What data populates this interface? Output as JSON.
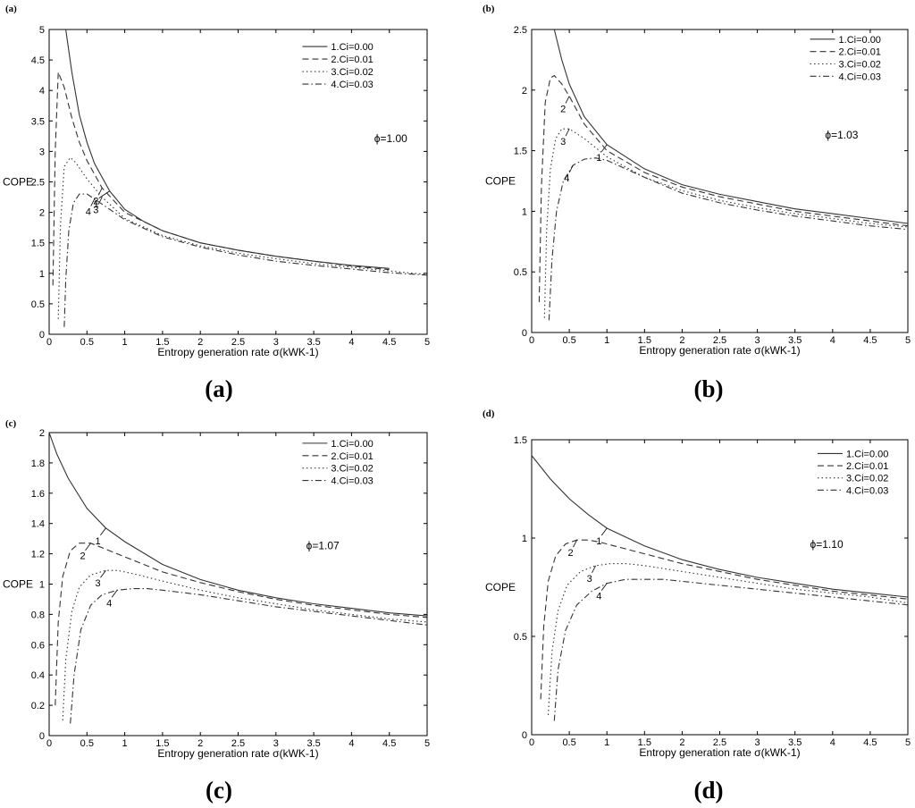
{
  "chart_data": [
    {
      "type": "line",
      "panel_tag": "(a)",
      "caption": "(a)",
      "xlabel": "Entropy generation rate σ(kWK-1)",
      "ylabel": "COPE",
      "annotation": "ϕ=1.00",
      "xlim": [
        0,
        5
      ],
      "ylim": [
        0,
        5
      ],
      "xticks": [
        "0",
        "0.5",
        "1",
        "1.5",
        "2",
        "2.5",
        "3",
        "3.5",
        "4",
        "4.5",
        "5"
      ],
      "yticks": [
        "0",
        "0.5",
        "1",
        "1.5",
        "2",
        "2.5",
        "3",
        "3.5",
        "4",
        "4.5",
        "5"
      ],
      "legend_position": "top-right",
      "series": [
        {
          "name": "1.Ci=0.00",
          "label": "1",
          "dash": "solid",
          "x": [
            0.22,
            0.3,
            0.4,
            0.5,
            0.6,
            0.8,
            1.0,
            1.25,
            1.5,
            2.0,
            2.5,
            3.0,
            3.5,
            4.0,
            4.5
          ],
          "y": [
            5.0,
            4.3,
            3.6,
            3.15,
            2.8,
            2.35,
            2.05,
            1.85,
            1.7,
            1.5,
            1.38,
            1.28,
            1.2,
            1.13,
            1.08
          ]
        },
        {
          "name": "2.Ci=0.01",
          "label": "2",
          "dash": "dashed",
          "x": [
            0.05,
            0.08,
            0.12,
            0.2,
            0.3,
            0.4,
            0.5,
            0.7,
            1.0,
            1.5,
            2.0,
            2.5,
            3.0,
            3.5,
            4.0,
            4.5
          ],
          "y": [
            0.8,
            3.0,
            4.3,
            4.05,
            3.55,
            3.15,
            2.85,
            2.4,
            2.0,
            1.7,
            1.5,
            1.38,
            1.28,
            1.2,
            1.12,
            1.06
          ]
        },
        {
          "name": "3.Ci=0.02",
          "label": "3",
          "dash": "dotted",
          "x": [
            0.12,
            0.15,
            0.2,
            0.28,
            0.35,
            0.5,
            0.7,
            1.0,
            1.5,
            2.0,
            2.5,
            3.0,
            3.5,
            4.0,
            4.5,
            5.0
          ],
          "y": [
            0.25,
            1.8,
            2.75,
            2.9,
            2.82,
            2.55,
            2.25,
            1.9,
            1.62,
            1.45,
            1.33,
            1.24,
            1.16,
            1.1,
            1.04,
            0.98
          ]
        },
        {
          "name": "4.Ci=0.03",
          "label": "4",
          "dash": "dashdot",
          "x": [
            0.2,
            0.22,
            0.26,
            0.32,
            0.4,
            0.5,
            0.6,
            0.8,
            1.0,
            1.5,
            2.0,
            2.5,
            3.0,
            3.5,
            4.0,
            4.5,
            5.0
          ],
          "y": [
            0.12,
            0.9,
            1.7,
            2.15,
            2.3,
            2.3,
            2.22,
            2.05,
            1.88,
            1.6,
            1.43,
            1.3,
            1.2,
            1.13,
            1.07,
            1.01,
            0.97
          ]
        }
      ]
    },
    {
      "type": "line",
      "panel_tag": "(b)",
      "caption": "(b)",
      "xlabel": "Entropy generation rate σ(kWK-1)",
      "ylabel": "COPE",
      "annotation": "ϕ=1.03",
      "xlim": [
        0,
        5
      ],
      "ylim": [
        0,
        2.5
      ],
      "xticks": [
        "0",
        "0.5",
        "1",
        "1.5",
        "2",
        "2.5",
        "3",
        "3.5",
        "4",
        "4.5",
        "5"
      ],
      "yticks": [
        "0",
        "0.5",
        "1",
        "1.5",
        "2",
        "2.5"
      ],
      "legend_position": "top-right",
      "series": [
        {
          "name": "1.Ci=0.00",
          "label": "1",
          "dash": "solid",
          "x": [
            0.3,
            0.4,
            0.5,
            0.7,
            1.0,
            1.5,
            2.0,
            2.5,
            3.0,
            3.5,
            4.0,
            4.5,
            5.0
          ],
          "y": [
            2.5,
            2.25,
            2.05,
            1.78,
            1.55,
            1.35,
            1.22,
            1.14,
            1.08,
            1.02,
            0.98,
            0.94,
            0.9
          ]
        },
        {
          "name": "2.Ci=0.01",
          "label": "2",
          "dash": "dashed",
          "x": [
            0.1,
            0.13,
            0.18,
            0.25,
            0.3,
            0.4,
            0.5,
            0.7,
            1.0,
            1.5,
            2.0,
            2.5,
            3.0,
            3.5,
            4.0,
            4.5,
            5.0
          ],
          "y": [
            0.25,
            1.2,
            1.9,
            2.1,
            2.12,
            2.05,
            1.95,
            1.72,
            1.5,
            1.32,
            1.2,
            1.12,
            1.06,
            1.0,
            0.96,
            0.92,
            0.88
          ]
        },
        {
          "name": "3.Ci=0.02",
          "label": "3",
          "dash": "dotted",
          "x": [
            0.17,
            0.2,
            0.25,
            0.32,
            0.4,
            0.5,
            0.7,
            1.0,
            1.5,
            2.0,
            2.5,
            3.0,
            3.5,
            4.0,
            4.5,
            5.0
          ],
          "y": [
            0.12,
            0.85,
            1.35,
            1.6,
            1.68,
            1.68,
            1.6,
            1.45,
            1.28,
            1.17,
            1.09,
            1.03,
            0.98,
            0.94,
            0.9,
            0.87
          ]
        },
        {
          "name": "4.Ci=0.03",
          "label": "4",
          "dash": "dashdot",
          "x": [
            0.23,
            0.27,
            0.33,
            0.42,
            0.55,
            0.7,
            0.85,
            1.0,
            1.5,
            2.0,
            2.5,
            3.0,
            3.5,
            4.0,
            4.5,
            5.0
          ],
          "y": [
            0.1,
            0.6,
            1.0,
            1.25,
            1.38,
            1.43,
            1.44,
            1.42,
            1.28,
            1.15,
            1.07,
            1.01,
            0.96,
            0.92,
            0.88,
            0.85
          ]
        }
      ]
    },
    {
      "type": "line",
      "panel_tag": "(c)",
      "caption": "(c)",
      "xlabel": "Entropy generation rate σ(kWK-1)",
      "ylabel": "COPE",
      "annotation": "ϕ=1.07",
      "xlim": [
        0,
        5
      ],
      "ylim": [
        0,
        2
      ],
      "xticks": [
        "0",
        "0.5",
        "1",
        "1.5",
        "2",
        "2.5",
        "3",
        "3.5",
        "4",
        "4.5",
        "5"
      ],
      "yticks": [
        "0",
        "0.2",
        "0.4",
        "0.6",
        "0.8",
        "1",
        "1.2",
        "1.4",
        "1.6",
        "1.8",
        "2"
      ],
      "legend_position": "top-right",
      "series": [
        {
          "name": "1.Ci=0.00",
          "label": "1",
          "dash": "solid",
          "x": [
            0.0,
            0.1,
            0.25,
            0.5,
            0.75,
            1.0,
            1.5,
            2.0,
            2.5,
            3.0,
            3.5,
            4.0,
            4.5,
            5.0
          ],
          "y": [
            2.0,
            1.86,
            1.7,
            1.5,
            1.37,
            1.28,
            1.13,
            1.03,
            0.96,
            0.91,
            0.87,
            0.84,
            0.81,
            0.79
          ]
        },
        {
          "name": "2.Ci=0.01",
          "label": "2",
          "dash": "dashed",
          "x": [
            0.08,
            0.12,
            0.18,
            0.28,
            0.4,
            0.55,
            0.7,
            1.0,
            1.5,
            2.0,
            2.5,
            3.0,
            3.5,
            4.0,
            4.5,
            5.0
          ],
          "y": [
            0.2,
            0.75,
            1.05,
            1.22,
            1.27,
            1.27,
            1.24,
            1.18,
            1.08,
            1.01,
            0.95,
            0.9,
            0.86,
            0.83,
            0.8,
            0.78
          ]
        },
        {
          "name": "3.Ci=0.02",
          "label": "3",
          "dash": "dotted",
          "x": [
            0.18,
            0.22,
            0.3,
            0.4,
            0.55,
            0.75,
            0.9,
            1.1,
            1.5,
            2.0,
            2.5,
            3.0,
            3.5,
            4.0,
            4.5,
            5.0
          ],
          "y": [
            0.1,
            0.5,
            0.82,
            0.98,
            1.06,
            1.09,
            1.09,
            1.07,
            1.02,
            0.96,
            0.91,
            0.87,
            0.83,
            0.8,
            0.77,
            0.75
          ]
        },
        {
          "name": "4.Ci=0.03",
          "label": "4",
          "dash": "dashdot",
          "x": [
            0.28,
            0.33,
            0.42,
            0.55,
            0.7,
            0.9,
            1.1,
            1.3,
            1.5,
            2.0,
            2.5,
            3.0,
            3.5,
            4.0,
            4.5,
            5.0
          ],
          "y": [
            0.08,
            0.4,
            0.7,
            0.86,
            0.93,
            0.96,
            0.97,
            0.97,
            0.96,
            0.93,
            0.89,
            0.85,
            0.82,
            0.79,
            0.76,
            0.73
          ]
        }
      ]
    },
    {
      "type": "line",
      "panel_tag": "(d)",
      "caption": "(d)",
      "xlabel": "Entropy generation rate σ(kWK-1)",
      "ylabel": "COPE",
      "annotation": "ϕ=1.10",
      "xlim": [
        0,
        5
      ],
      "ylim": [
        0,
        1.5
      ],
      "xticks": [
        "0",
        "0.5",
        "1",
        "1.5",
        "2",
        "2.5",
        "3",
        "3.5",
        "4",
        "4.5",
        "5"
      ],
      "yticks": [
        "0",
        "0.5",
        "1",
        "1.5"
      ],
      "legend_position": "top-right",
      "series": [
        {
          "name": "1.Ci=0.00",
          "label": "1",
          "dash": "solid",
          "x": [
            0.0,
            0.25,
            0.5,
            0.75,
            1.0,
            1.5,
            2.0,
            2.5,
            3.0,
            3.5,
            4.0,
            4.5,
            5.0
          ],
          "y": [
            1.42,
            1.3,
            1.2,
            1.12,
            1.05,
            0.96,
            0.89,
            0.84,
            0.8,
            0.77,
            0.74,
            0.72,
            0.7
          ]
        },
        {
          "name": "2.Ci=0.01",
          "label": "2",
          "dash": "dashed",
          "x": [
            0.12,
            0.16,
            0.22,
            0.32,
            0.45,
            0.6,
            0.75,
            0.9,
            1.2,
            1.5,
            2.0,
            2.5,
            3.0,
            3.5,
            4.0,
            4.5,
            5.0
          ],
          "y": [
            0.18,
            0.55,
            0.78,
            0.91,
            0.97,
            0.99,
            0.99,
            0.98,
            0.95,
            0.92,
            0.87,
            0.83,
            0.79,
            0.76,
            0.73,
            0.71,
            0.69
          ]
        },
        {
          "name": "3.Ci=0.02",
          "label": "3",
          "dash": "dotted",
          "x": [
            0.22,
            0.27,
            0.35,
            0.47,
            0.65,
            0.85,
            1.05,
            1.25,
            1.5,
            2.0,
            2.5,
            3.0,
            3.5,
            4.0,
            4.5,
            5.0
          ],
          "y": [
            0.1,
            0.42,
            0.63,
            0.76,
            0.83,
            0.86,
            0.87,
            0.87,
            0.86,
            0.83,
            0.8,
            0.77,
            0.74,
            0.72,
            0.7,
            0.67
          ]
        },
        {
          "name": "4.Ci=0.03",
          "label": "4",
          "dash": "dashdot",
          "x": [
            0.3,
            0.35,
            0.45,
            0.6,
            0.8,
            1.0,
            1.25,
            1.5,
            1.75,
            2.0,
            2.5,
            3.0,
            3.5,
            4.0,
            4.5,
            5.0
          ],
          "y": [
            0.07,
            0.33,
            0.53,
            0.66,
            0.73,
            0.77,
            0.79,
            0.79,
            0.79,
            0.78,
            0.76,
            0.74,
            0.72,
            0.7,
            0.68,
            0.66
          ]
        }
      ]
    }
  ]
}
